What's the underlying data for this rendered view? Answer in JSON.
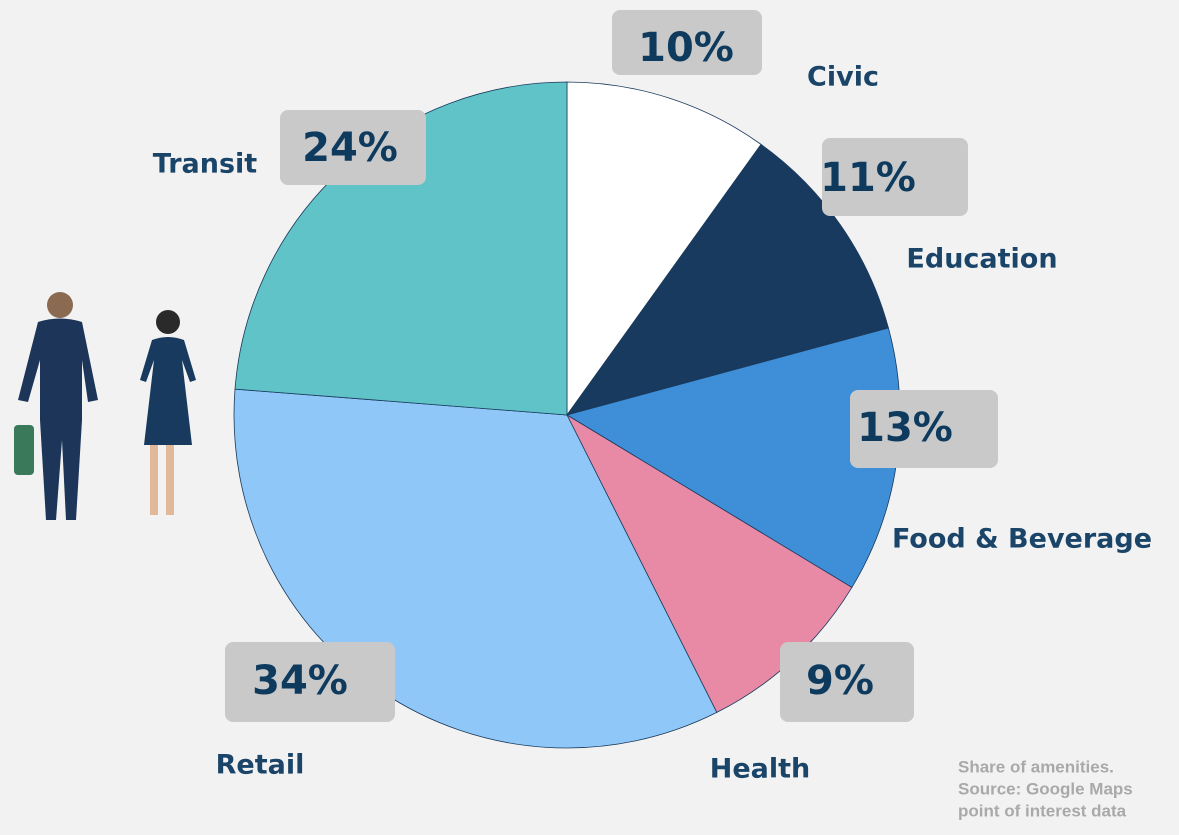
{
  "chart_data": {
    "type": "pie",
    "categories": [
      "Civic",
      "Education",
      "Food & Beverage",
      "Health",
      "Retail",
      "Transit"
    ],
    "values": [
      10,
      11,
      13,
      9,
      34,
      24
    ],
    "value_labels": [
      "10%",
      "11%",
      "13%",
      "9%",
      "34%",
      "24%"
    ],
    "colors": [
      "#ffffff",
      "#173a5e",
      "#3f8fd8",
      "#e88aa6",
      "#8fc8f8",
      "#5fc3c7"
    ],
    "note": [
      "Share of amenities.",
      "Source: Google Maps",
      "point of interest data"
    ]
  }
}
